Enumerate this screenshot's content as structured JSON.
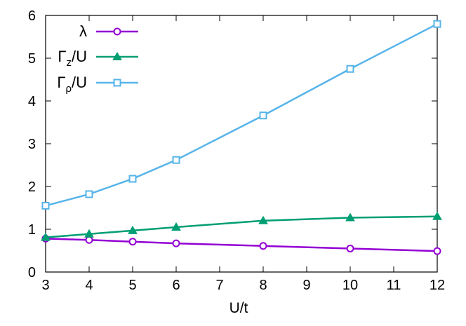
{
  "chart_data": {
    "type": "line",
    "xlabel": "U/t",
    "ylabel": "",
    "title": "",
    "xlim": [
      3,
      12
    ],
    "ylim": [
      0,
      6
    ],
    "x_ticks": [
      3,
      4,
      5,
      6,
      7,
      8,
      9,
      10,
      11,
      12
    ],
    "y_ticks": [
      0,
      1,
      2,
      3,
      4,
      5,
      6
    ],
    "grid": false,
    "legend_position": "top-left",
    "x": [
      3,
      4,
      5,
      6,
      8,
      10,
      12
    ],
    "series": [
      {
        "name": "λ",
        "legend_main": "λ",
        "legend_sub": "",
        "legend_suffix": "",
        "color": "#9400d3",
        "marker": "open-circle",
        "values": [
          0.78,
          0.75,
          0.71,
          0.67,
          0.61,
          0.55,
          0.49
        ]
      },
      {
        "name": "Γz/U",
        "legend_main": "Γ",
        "legend_sub": "z",
        "legend_suffix": "/U",
        "color": "#009e73",
        "marker": "filled-triangle",
        "values": [
          0.81,
          0.89,
          0.97,
          1.05,
          1.2,
          1.27,
          1.3
        ]
      },
      {
        "name": "Γρ/U",
        "legend_main": "Γ",
        "legend_sub": "ρ",
        "legend_suffix": "/U",
        "color": "#56b4e9",
        "marker": "open-square",
        "values": [
          1.55,
          1.82,
          2.18,
          2.62,
          3.66,
          4.75,
          5.8
        ]
      }
    ]
  }
}
